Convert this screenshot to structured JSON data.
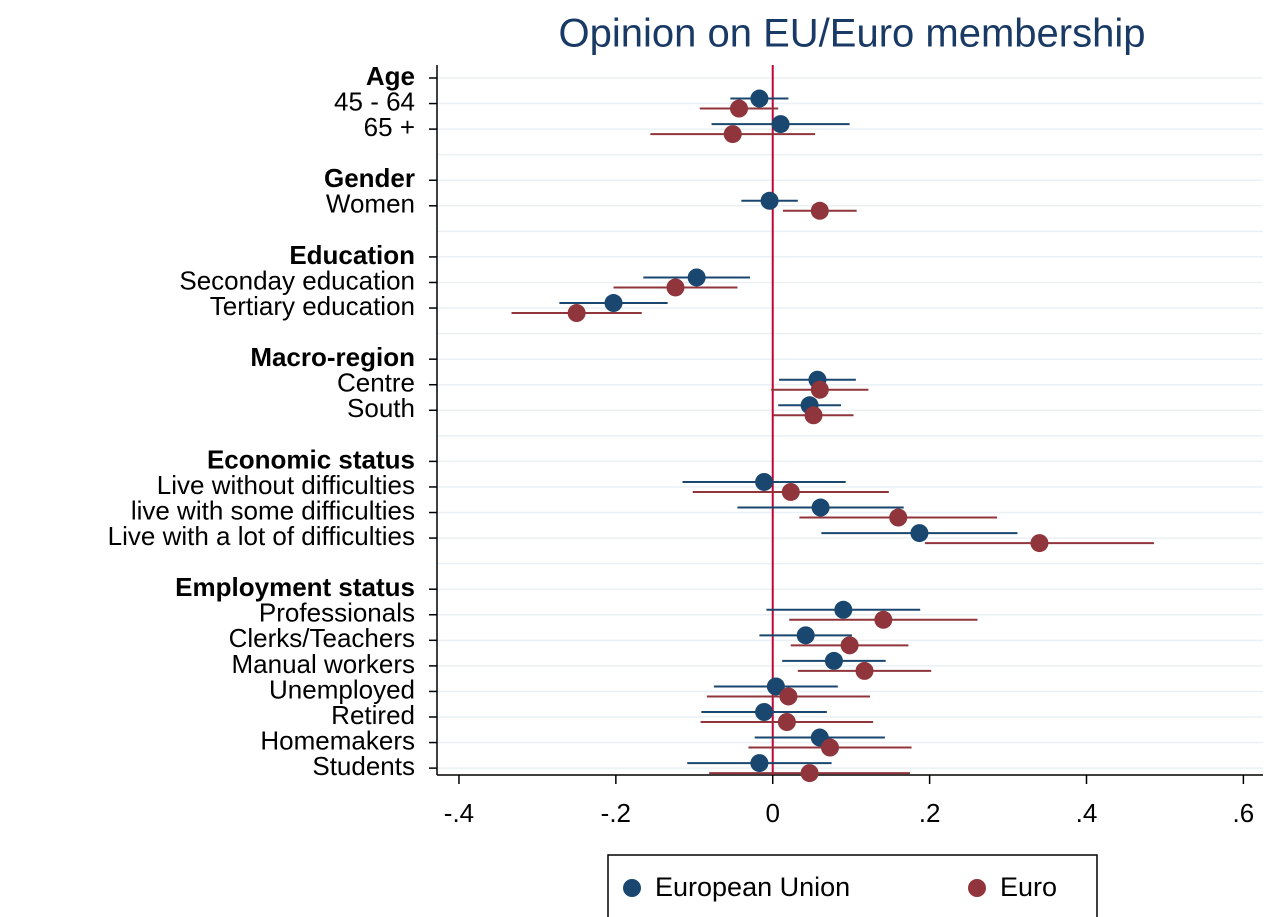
{
  "chart_data": {
    "type": "dot",
    "title": "Opinion on EU/Euro membership",
    "categories": [
      "Age",
      "45 - 64",
      "65 +",
      null,
      "Gender",
      "Women",
      null,
      "Education",
      "Seconday education",
      "Tertiary education",
      null,
      "Macro-region",
      "Centre",
      "South",
      null,
      "Economic status",
      "Live without difficulties",
      "live with some difficulties",
      "Live with a lot of difficulties",
      null,
      "Employment status",
      "Professionals",
      "Clerks/Teachers",
      "Manual workers",
      "Unemployed",
      "Retired",
      "Homemakers",
      "Students"
    ],
    "series": [
      {
        "name": "European Union",
        "color": "#1a476f",
        "values": [
          null,
          -0.017,
          0.01,
          null,
          null,
          -0.004,
          null,
          null,
          -0.097,
          -0.203,
          null,
          null,
          0.057,
          0.047,
          null,
          null,
          -0.011,
          0.061,
          0.187,
          null,
          null,
          0.09,
          0.042,
          0.078,
          0.004,
          -0.011,
          0.06,
          -0.017
        ],
        "errors": [
          null,
          0.037,
          0.088,
          null,
          null,
          0.036,
          null,
          null,
          0.068,
          0.069,
          null,
          null,
          0.049,
          0.04,
          null,
          null,
          0.104,
          0.106,
          0.125,
          null,
          null,
          0.098,
          0.059,
          0.066,
          0.079,
          0.08,
          0.083,
          0.092
        ]
      },
      {
        "name": "Euro",
        "color": "#90353b",
        "values": [
          null,
          -0.043,
          -0.051,
          null,
          null,
          0.06,
          null,
          null,
          -0.124,
          -0.25,
          null,
          null,
          0.06,
          0.052,
          null,
          null,
          0.023,
          0.16,
          0.34,
          null,
          null,
          0.141,
          0.098,
          0.117,
          0.02,
          0.018,
          0.073,
          0.047
        ],
        "errors": [
          null,
          0.05,
          0.105,
          null,
          null,
          0.047,
          null,
          null,
          0.079,
          0.083,
          null,
          null,
          0.062,
          0.051,
          null,
          null,
          0.125,
          0.126,
          0.146,
          null,
          null,
          0.12,
          0.075,
          0.085,
          0.104,
          0.11,
          0.104,
          0.128
        ]
      }
    ],
    "xlim": [
      -0.428,
      0.625
    ],
    "xticks": [
      {
        "value": -0.4,
        "label": "-.4"
      },
      {
        "value": -0.2,
        "label": "-.2"
      },
      0,
      {
        "value": 0.2,
        "label": ".2"
      },
      {
        "value": 0.4,
        "label": ".4"
      },
      {
        "value": 0.6,
        "label": ".6"
      }
    ],
    "reference_line": {
      "value": 0,
      "color": "#c10534"
    },
    "grid": true,
    "legend": "bottom"
  }
}
